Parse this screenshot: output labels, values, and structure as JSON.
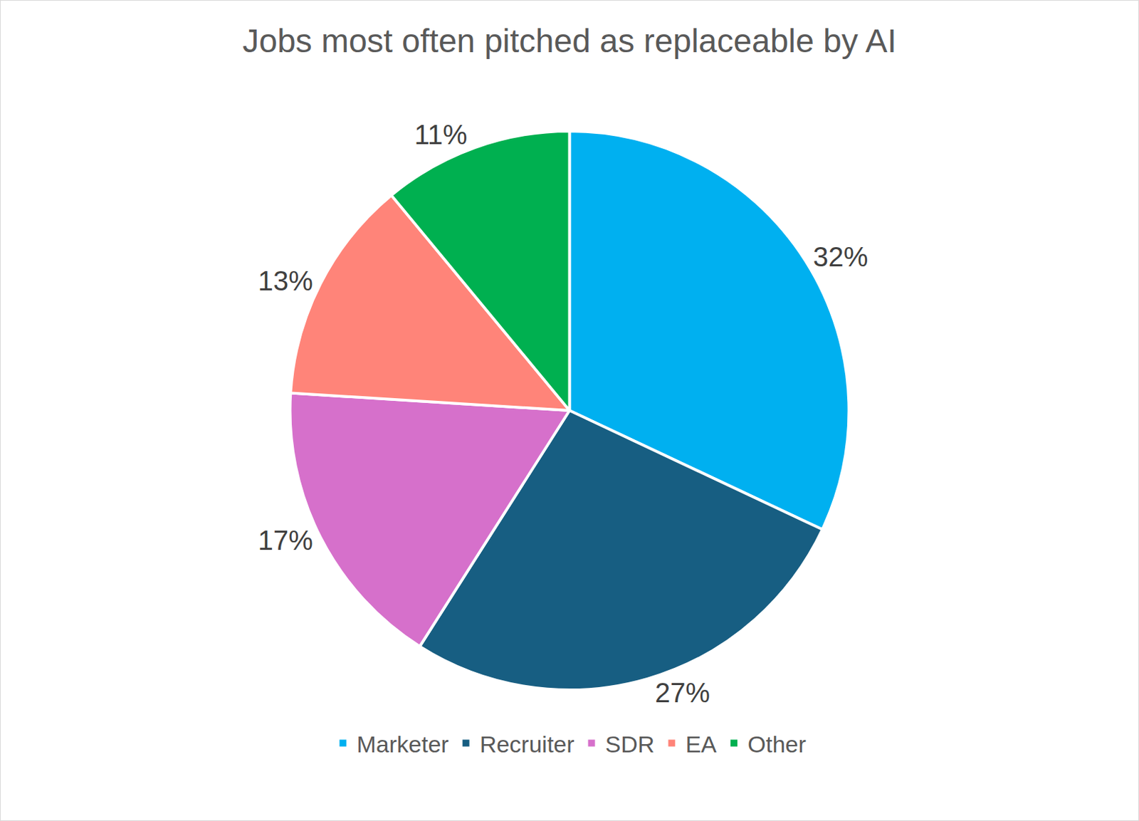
{
  "chart_data": {
    "type": "pie",
    "title": "Jobs most often pitched as replaceable by AI",
    "categories": [
      "Marketer",
      "Recruiter",
      "SDR",
      "EA",
      "Other"
    ],
    "values": [
      32,
      27,
      17,
      13,
      11
    ],
    "value_labels": [
      "32%",
      "27%",
      "17%",
      "13%",
      "11%"
    ],
    "colors": [
      "#00b0f0",
      "#175e82",
      "#d670cb",
      "#ff8479",
      "#00b050"
    ],
    "data_labels": true,
    "legend": "bottom"
  }
}
